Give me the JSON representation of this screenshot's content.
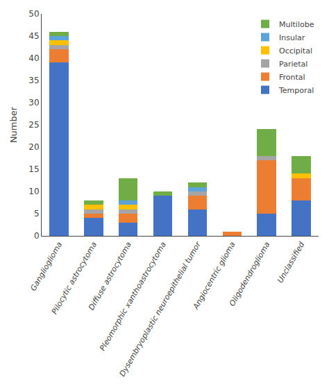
{
  "chart_data": {
    "type": "bar",
    "stacked": true,
    "categories": [
      "Ganglioglioma",
      "Pilocytic astrocytoma",
      "Diffuse astrocytoma",
      "Pleomorphic xanthoastrocytoma",
      "Dysembryoplastic neuroepithelial tumor",
      "Angiocentric glioma",
      "Oligodendroglioma",
      "Unclassified"
    ],
    "series": [
      {
        "name": "Temporal",
        "color": "#4472C4",
        "values": [
          39,
          4,
          3,
          9,
          6,
          0,
          5,
          8
        ]
      },
      {
        "name": "Frontal",
        "color": "#ED7D31",
        "values": [
          3,
          1,
          2,
          0,
          3,
          1,
          12,
          5
        ]
      },
      {
        "name": "Parietal",
        "color": "#A5A5A5",
        "values": [
          1,
          1,
          1,
          0,
          1,
          0,
          1,
          0
        ]
      },
      {
        "name": "Occipital",
        "color": "#FFC000",
        "values": [
          1,
          1,
          1,
          0,
          0,
          0,
          0,
          1
        ]
      },
      {
        "name": "Insular",
        "color": "#5BA3D9",
        "values": [
          1,
          0,
          1,
          0,
          1,
          0,
          0,
          0
        ]
      },
      {
        "name": "Multilobe",
        "color": "#70AD47",
        "values": [
          1,
          1,
          5,
          1,
          1,
          0,
          6,
          4
        ]
      }
    ],
    "ylabel": "Number",
    "ylim": [
      0,
      50
    ],
    "yticks": [
      0,
      5,
      10,
      15,
      20,
      25,
      30,
      35,
      40,
      45,
      50
    ],
    "grid": false,
    "legend": "upper right"
  }
}
